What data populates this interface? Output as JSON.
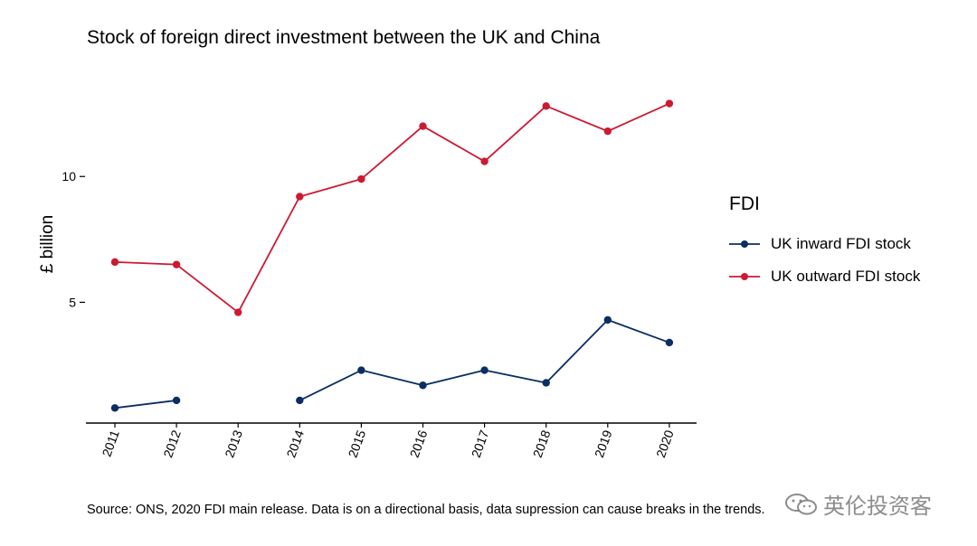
{
  "chart_data": {
    "type": "line",
    "title": "Stock of foreign direct investment between the UK and China",
    "xlabel": "",
    "ylabel": "£ billion",
    "x": [
      "2011",
      "2012",
      "2013",
      "2014",
      "2015",
      "2016",
      "2017",
      "2018",
      "2019",
      "2020"
    ],
    "ylim": [
      0.2,
      14.5
    ],
    "yticks": [
      5,
      10
    ],
    "legend_title": "FDI",
    "legend_position": "right",
    "series": [
      {
        "name": "UK inward FDI stock",
        "color": "#0b2d63",
        "values": [
          0.8,
          1.1,
          null,
          1.1,
          2.3,
          1.7,
          2.3,
          1.8,
          4.3,
          3.4
        ]
      },
      {
        "name": "UK outward FDI stock",
        "color": "#cc1a33",
        "values": [
          6.6,
          6.5,
          4.6,
          9.2,
          9.9,
          12.0,
          10.6,
          12.8,
          11.8,
          12.9
        ]
      }
    ],
    "source": "Source: ONS, 2020 FDI main release. Data is on a directional basis, data supression can cause breaks in the trends."
  },
  "watermark": {
    "text": "英伦投资客",
    "icon": "wechat-icon"
  }
}
